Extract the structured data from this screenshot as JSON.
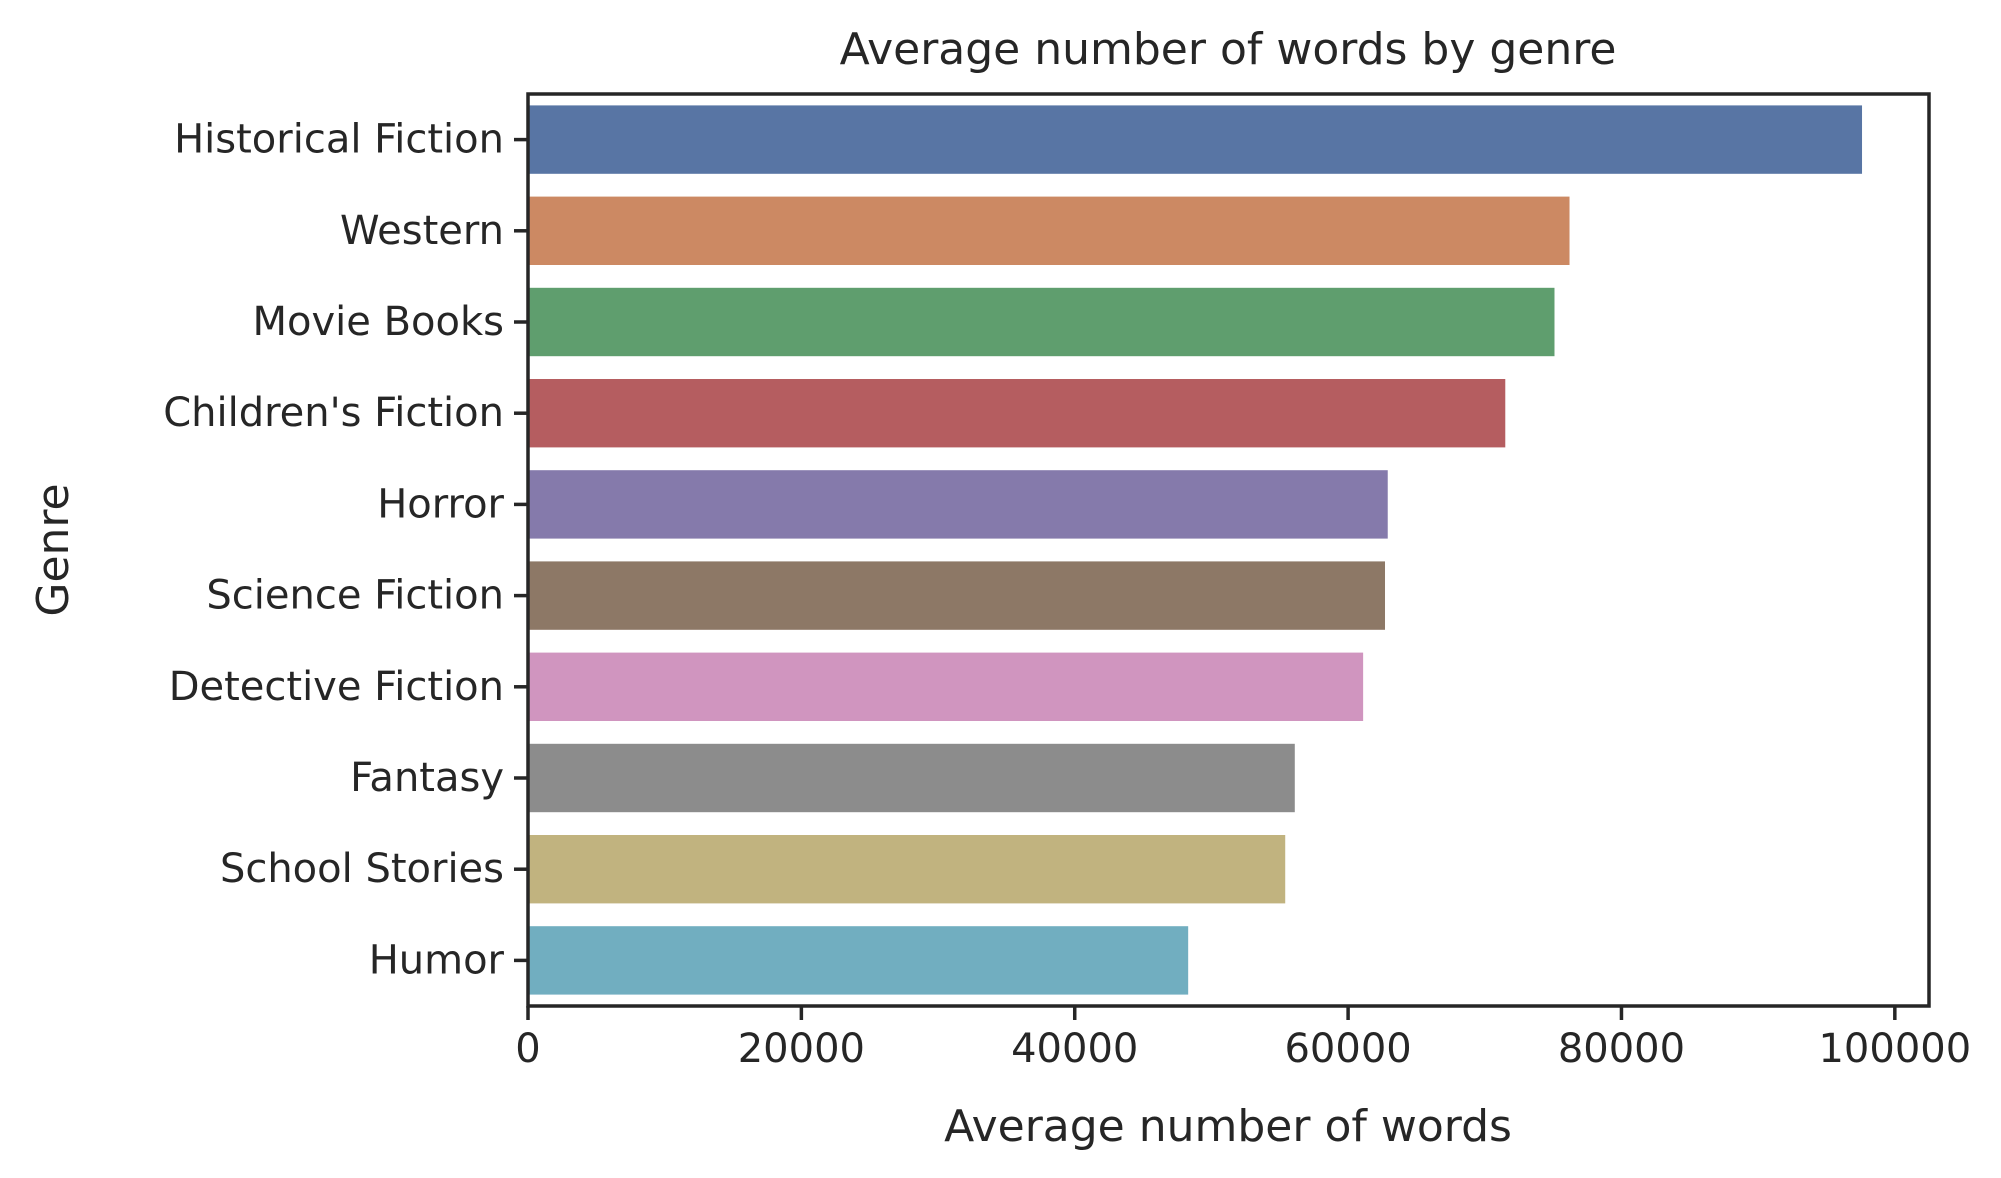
{
  "chart_data": {
    "type": "bar",
    "orientation": "horizontal",
    "title": "Average number of words by genre",
    "xlabel": "Average number of words",
    "ylabel": "Genre",
    "xlim": [
      0,
      102500
    ],
    "xticks": [
      0,
      20000,
      40000,
      60000,
      80000,
      100000
    ],
    "xtick_labels": [
      "0",
      "20000",
      "40000",
      "60000",
      "80000",
      "100000"
    ],
    "grid": false,
    "categories": [
      "Historical Fiction",
      "Western",
      "Movie Books",
      "Children's Fiction",
      "Horror",
      "Science Fiction",
      "Detective Fiction",
      "Fantasy",
      "School Stories",
      "Humor"
    ],
    "values": [
      97600,
      76200,
      75100,
      71500,
      62900,
      62700,
      61100,
      56100,
      55400,
      48300
    ],
    "colors": [
      "#5875a4",
      "#cc8963",
      "#5f9e6e",
      "#b55d60",
      "#857aab",
      "#8d7866",
      "#d095bf",
      "#8c8c8c",
      "#c1b37f",
      "#71aec0"
    ]
  }
}
